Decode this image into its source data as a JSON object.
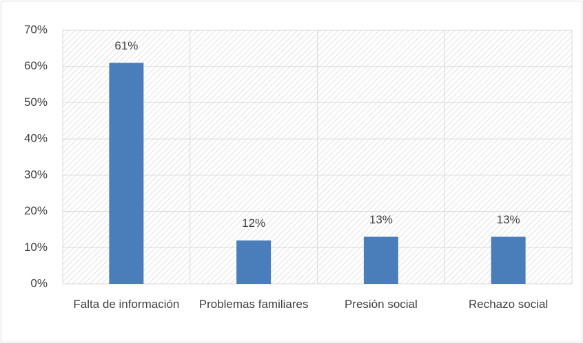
{
  "chart_data": {
    "type": "bar",
    "categories": [
      "Falta de información",
      "Problemas familiares",
      "Presión social",
      "Rechazo social"
    ],
    "values": [
      61,
      12,
      13,
      13
    ],
    "value_labels": [
      "61%",
      "12%",
      "13%",
      "13%"
    ],
    "color": "#4a7ebb",
    "ylim": [
      0,
      70
    ],
    "yticks": [
      {
        "value": 0,
        "label": "0%"
      },
      {
        "value": 10,
        "label": "10%"
      },
      {
        "value": 20,
        "label": "20%"
      },
      {
        "value": 30,
        "label": "30%"
      },
      {
        "value": 40,
        "label": "40%"
      },
      {
        "value": 50,
        "label": "50%"
      },
      {
        "value": 60,
        "label": "60%"
      },
      {
        "value": 70,
        "label": "70%"
      }
    ],
    "grid": true
  }
}
